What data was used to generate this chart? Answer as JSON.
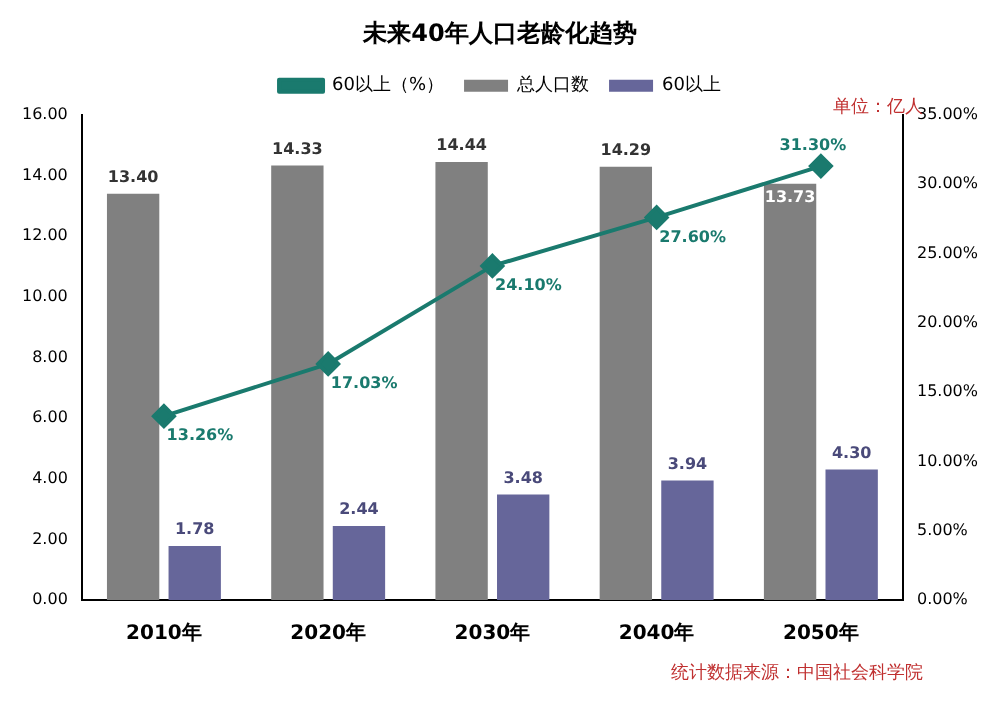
{
  "chart_data": {
    "type": "bar",
    "title": "未来40年人口老龄化趋势",
    "categories": [
      "2010年",
      "2020年",
      "2030年",
      "2040年",
      "2050年"
    ],
    "series": [
      {
        "name": "总人口数",
        "color": "#808080",
        "values": [
          13.4,
          14.33,
          14.44,
          14.29,
          13.73
        ],
        "value_labels": [
          "13.40",
          "14.33",
          "14.44",
          "14.29",
          "13.73"
        ]
      },
      {
        "name": "60以上",
        "color": "#66669a",
        "values": [
          1.78,
          2.44,
          3.48,
          3.94,
          4.3
        ],
        "value_labels": [
          "1.78",
          "2.44",
          "3.48",
          "3.94",
          "4.30"
        ]
      },
      {
        "name": "60以上（%）",
        "type": "line",
        "axis": "y2",
        "marker": "diamond",
        "color": "#1a7a6e",
        "values": [
          13.26,
          17.03,
          24.1,
          27.6,
          31.3
        ],
        "value_labels": [
          "13.26%",
          "17.03%",
          "24.10%",
          "27.60%",
          "31.30%"
        ]
      }
    ],
    "ylim": [
      0,
      16
    ],
    "yticks": [
      {
        "value": 0,
        "label": "0.00"
      },
      {
        "value": 2,
        "label": "2.00"
      },
      {
        "value": 4,
        "label": "4.00"
      },
      {
        "value": 6,
        "label": "6.00"
      },
      {
        "value": 8,
        "label": "8.00"
      },
      {
        "value": 10,
        "label": "10.00"
      },
      {
        "value": 12,
        "label": "12.00"
      },
      {
        "value": 14,
        "label": "14.00"
      },
      {
        "value": 16,
        "label": "16.00"
      }
    ],
    "y2lim": [
      0,
      35
    ],
    "y2ticks": [
      {
        "value": 0,
        "label": "0.00%"
      },
      {
        "value": 5,
        "label": "5.00%"
      },
      {
        "value": 10,
        "label": "10.00%"
      },
      {
        "value": 15,
        "label": "15.00%"
      },
      {
        "value": 20,
        "label": "20.00%"
      },
      {
        "value": 25,
        "label": "25.00%"
      },
      {
        "value": 30,
        "label": "30.00%"
      },
      {
        "value": 35,
        "label": "35.00%"
      }
    ],
    "legend": "top",
    "grid": false,
    "annotations": [
      "单位：亿人",
      "统计数据来源：中国社会科学院"
    ]
  }
}
